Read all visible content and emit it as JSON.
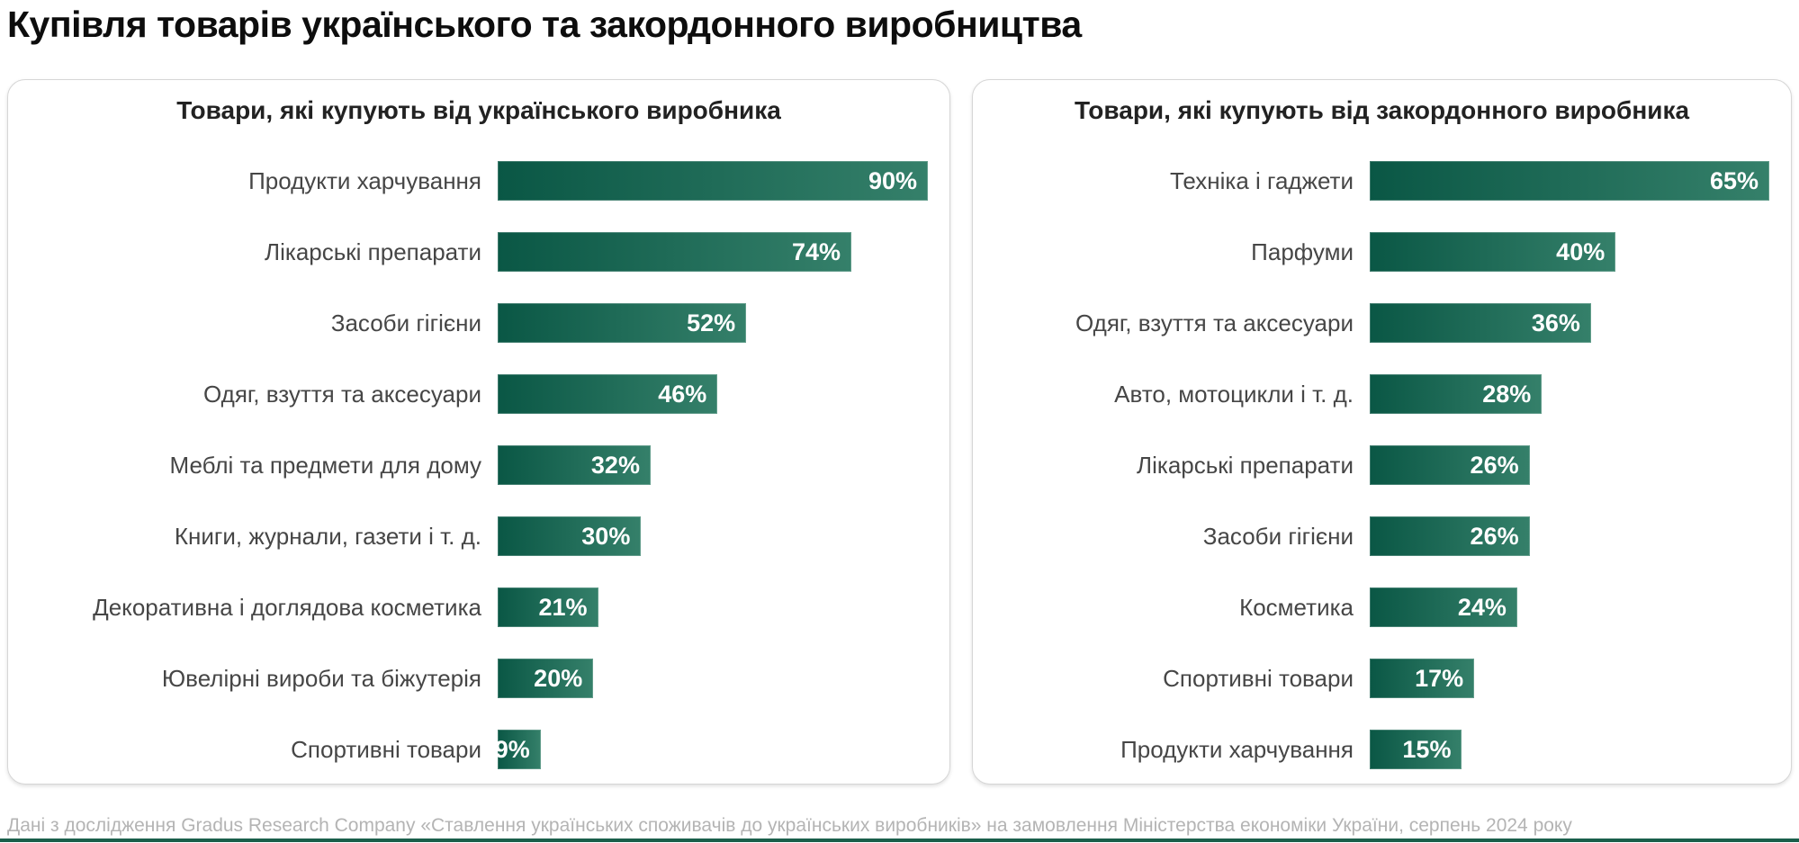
{
  "page": {
    "title": "Купівля товарів українського та закордонного виробництва",
    "footer": "Дані з дослідження Gradus Research Company «Ставлення українських споживачів до українських виробників» на замовлення Міністерства економіки України, серпень 2024 року"
  },
  "colors": {
    "bar_gradient_start": "#0a5745",
    "bar_gradient_end": "#35806a",
    "accent_line": "#1a5f4b",
    "value_label": "#ffffff",
    "category_label": "#464646",
    "title": "#0d0d0d",
    "footer": "#b4b4b4"
  },
  "chart_data": [
    {
      "type": "bar",
      "orientation": "horizontal",
      "title": "Товари, які купують від українського виробника",
      "unit": "%",
      "xlim": [
        0,
        90
      ],
      "grid": false,
      "legend": false,
      "categories": [
        "Продукти харчування",
        "Лікарські препарати",
        "Засоби гігієни",
        "Одяг, взуття та аксесуари",
        "Меблі та предмети для дому",
        "Книги, журнали, газети і т. д.",
        "Декоративна і доглядова косметика",
        "Ювелірні вироби та біжутерія",
        "Спортивні товари"
      ],
      "values": [
        90,
        74,
        52,
        46,
        32,
        30,
        21,
        20,
        9
      ]
    },
    {
      "type": "bar",
      "orientation": "horizontal",
      "title": "Товари, які купують від закордонного виробника",
      "unit": "%",
      "xlim": [
        0,
        65
      ],
      "grid": false,
      "legend": false,
      "categories": [
        "Техніка і гаджети",
        "Парфуми",
        "Одяг, взуття та аксесуари",
        "Авто, мотоцикли і т. д.",
        "Лікарські препарати",
        "Засоби гігієни",
        "Косметика",
        "Спортивні товари",
        "Продукти харчування"
      ],
      "values": [
        65,
        40,
        36,
        28,
        26,
        26,
        24,
        17,
        15
      ]
    }
  ]
}
